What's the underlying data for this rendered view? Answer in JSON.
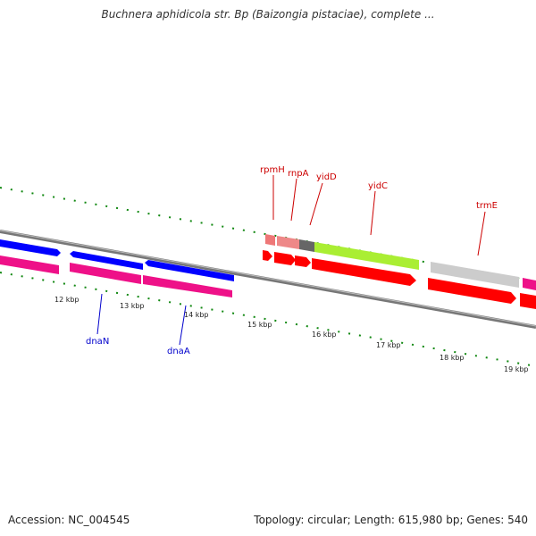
{
  "title": "Buchnera aphidicola str. Bp (Baizongia pistaciae), complete ...",
  "footer": {
    "accession": "Accession: NC_004545",
    "stats": "Topology: circular; Length: 615,980 bp; Genes: 540"
  },
  "scale": {
    "ticks": [
      "12 kbp",
      "13 kbp",
      "14 kbp",
      "15 kbp",
      "16 kbp",
      "17 kbp",
      "18 kbp",
      "19 kbp"
    ]
  },
  "gene_labels": [
    {
      "name": "rpmH",
      "strand": "forward"
    },
    {
      "name": "rnpA",
      "strand": "forward"
    },
    {
      "name": "yidD",
      "strand": "forward"
    },
    {
      "name": "yidC",
      "strand": "forward"
    },
    {
      "name": "trmE",
      "strand": "forward"
    },
    {
      "name": "dnaN",
      "strand": "reverse"
    },
    {
      "name": "dnaA",
      "strand": "reverse"
    }
  ],
  "colors": {
    "forward_label": "#cc0000",
    "reverse_label": "#0000cc",
    "cds": "#ff0000",
    "gene_forward": "#0000ff",
    "gene_magenta": "#ee1188",
    "yidC_feature": "#aaee33",
    "rpmH_feature": "#ee7777",
    "rnpA_feature": "#ee8888",
    "yidD_feature": "#666666",
    "trmE_feature": "#cccccc",
    "backbone": "#888888",
    "tick": "#118811"
  }
}
